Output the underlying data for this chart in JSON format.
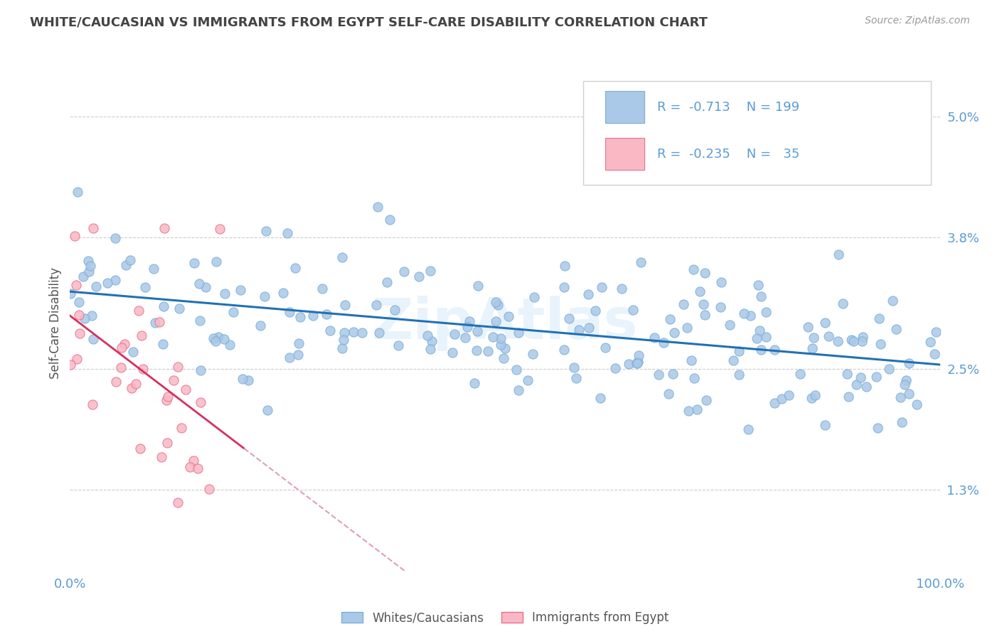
{
  "title": "WHITE/CAUCASIAN VS IMMIGRANTS FROM EGYPT SELF-CARE DISABILITY CORRELATION CHART",
  "source_text": "Source: ZipAtlas.com",
  "ylabel": "Self-Care Disability",
  "yticks": [
    1.3,
    2.5,
    3.8,
    5.0
  ],
  "ytick_labels": [
    "1.3%",
    "2.5%",
    "3.8%",
    "5.0%"
  ],
  "xmin": 0.0,
  "xmax": 100.0,
  "ymin": 0.5,
  "ymax": 5.4,
  "blue_R": -0.713,
  "blue_N": 199,
  "pink_R": -0.235,
  "pink_N": 35,
  "blue_dot_color": "#aac8e8",
  "blue_dot_edge": "#7bafd4",
  "blue_line_color": "#2171b5",
  "pink_dot_color": "#f9b8c4",
  "pink_dot_edge": "#e87090",
  "pink_line_color": "#d43060",
  "pink_dash_color": "#e0a0b0",
  "legend_label_blue": "Whites/Caucasians",
  "legend_label_pink": "Immigrants from Egypt",
  "watermark": "ZipAtlas",
  "bg_color": "#ffffff",
  "grid_color": "#cccccc",
  "title_color": "#444444",
  "tick_label_color": "#5b9bd5",
  "legend_text_color": "#5b9bd5",
  "source_color": "#999999",
  "ylabel_color": "#555555"
}
